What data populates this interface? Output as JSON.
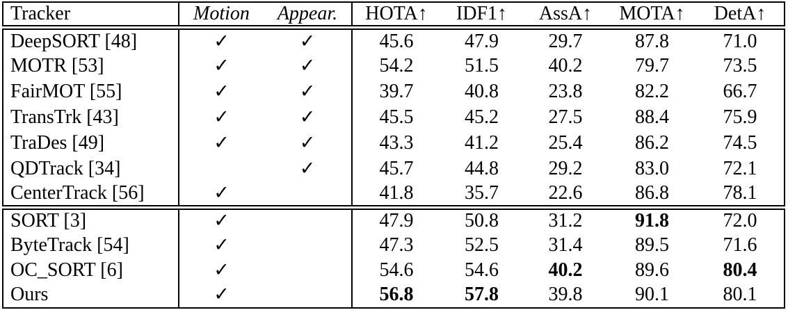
{
  "background": "#ffffff",
  "text_color": "#000000",
  "border_color": "#000000",
  "table": {
    "header": {
      "tracker": "Tracker",
      "motion": "Motion",
      "appear": "Appear.",
      "metrics": [
        "HOTA↑",
        "IDF1↑",
        "AssA↑",
        "MOTA↑",
        "DetA↑"
      ]
    },
    "check_glyph": "✓",
    "groups": [
      {
        "rows": [
          {
            "tracker": "DeepSORT [48]",
            "motion": true,
            "appear": true,
            "metrics": [
              {
                "v": "45.6"
              },
              {
                "v": "47.9"
              },
              {
                "v": "29.7"
              },
              {
                "v": "87.8"
              },
              {
                "v": "71.0"
              }
            ]
          },
          {
            "tracker": "MOTR [53]",
            "motion": true,
            "appear": true,
            "metrics": [
              {
                "v": "54.2"
              },
              {
                "v": "51.5"
              },
              {
                "v": "40.2"
              },
              {
                "v": "79.7"
              },
              {
                "v": "73.5"
              }
            ]
          },
          {
            "tracker": "FairMOT [55]",
            "motion": true,
            "appear": true,
            "metrics": [
              {
                "v": "39.7"
              },
              {
                "v": "40.8"
              },
              {
                "v": "23.8"
              },
              {
                "v": "82.2"
              },
              {
                "v": "66.7"
              }
            ]
          },
          {
            "tracker": "TransTrk [43]",
            "motion": true,
            "appear": true,
            "metrics": [
              {
                "v": "45.5"
              },
              {
                "v": "45.2"
              },
              {
                "v": "27.5"
              },
              {
                "v": "88.4"
              },
              {
                "v": "75.9"
              }
            ]
          },
          {
            "tracker": "TraDes [49]",
            "motion": true,
            "appear": true,
            "metrics": [
              {
                "v": "43.3"
              },
              {
                "v": "41.2"
              },
              {
                "v": "25.4"
              },
              {
                "v": "86.2"
              },
              {
                "v": "74.5"
              }
            ]
          },
          {
            "tracker": "QDTrack [34]",
            "motion": false,
            "appear": true,
            "metrics": [
              {
                "v": "45.7"
              },
              {
                "v": "44.8"
              },
              {
                "v": "29.2"
              },
              {
                "v": "83.0"
              },
              {
                "v": "72.1"
              }
            ]
          },
          {
            "tracker": "CenterTrack [56]",
            "motion": true,
            "appear": false,
            "metrics": [
              {
                "v": "41.8"
              },
              {
                "v": "35.7"
              },
              {
                "v": "22.6"
              },
              {
                "v": "86.8"
              },
              {
                "v": "78.1"
              }
            ]
          }
        ]
      },
      {
        "rows": [
          {
            "tracker": "SORT [3]",
            "motion": true,
            "appear": false,
            "metrics": [
              {
                "v": "47.9"
              },
              {
                "v": "50.8"
              },
              {
                "v": "31.2"
              },
              {
                "v": "91.8",
                "b": true
              },
              {
                "v": "72.0"
              }
            ]
          },
          {
            "tracker": "ByteTrack [54]",
            "motion": true,
            "appear": false,
            "metrics": [
              {
                "v": "47.3"
              },
              {
                "v": "52.5"
              },
              {
                "v": "31.4"
              },
              {
                "v": "89.5"
              },
              {
                "v": "71.6"
              }
            ]
          },
          {
            "tracker": "OC_SORT [6]",
            "motion": true,
            "appear": false,
            "metrics": [
              {
                "v": "54.6"
              },
              {
                "v": "54.6"
              },
              {
                "v": "40.2",
                "b": true
              },
              {
                "v": "89.6"
              },
              {
                "v": "80.4",
                "b": true
              }
            ]
          },
          {
            "tracker": "Ours",
            "motion": true,
            "appear": false,
            "metrics": [
              {
                "v": "56.8",
                "b": true
              },
              {
                "v": "57.8",
                "b": true
              },
              {
                "v": "39.8"
              },
              {
                "v": "90.1"
              },
              {
                "v": "80.1"
              }
            ]
          }
        ]
      }
    ]
  }
}
